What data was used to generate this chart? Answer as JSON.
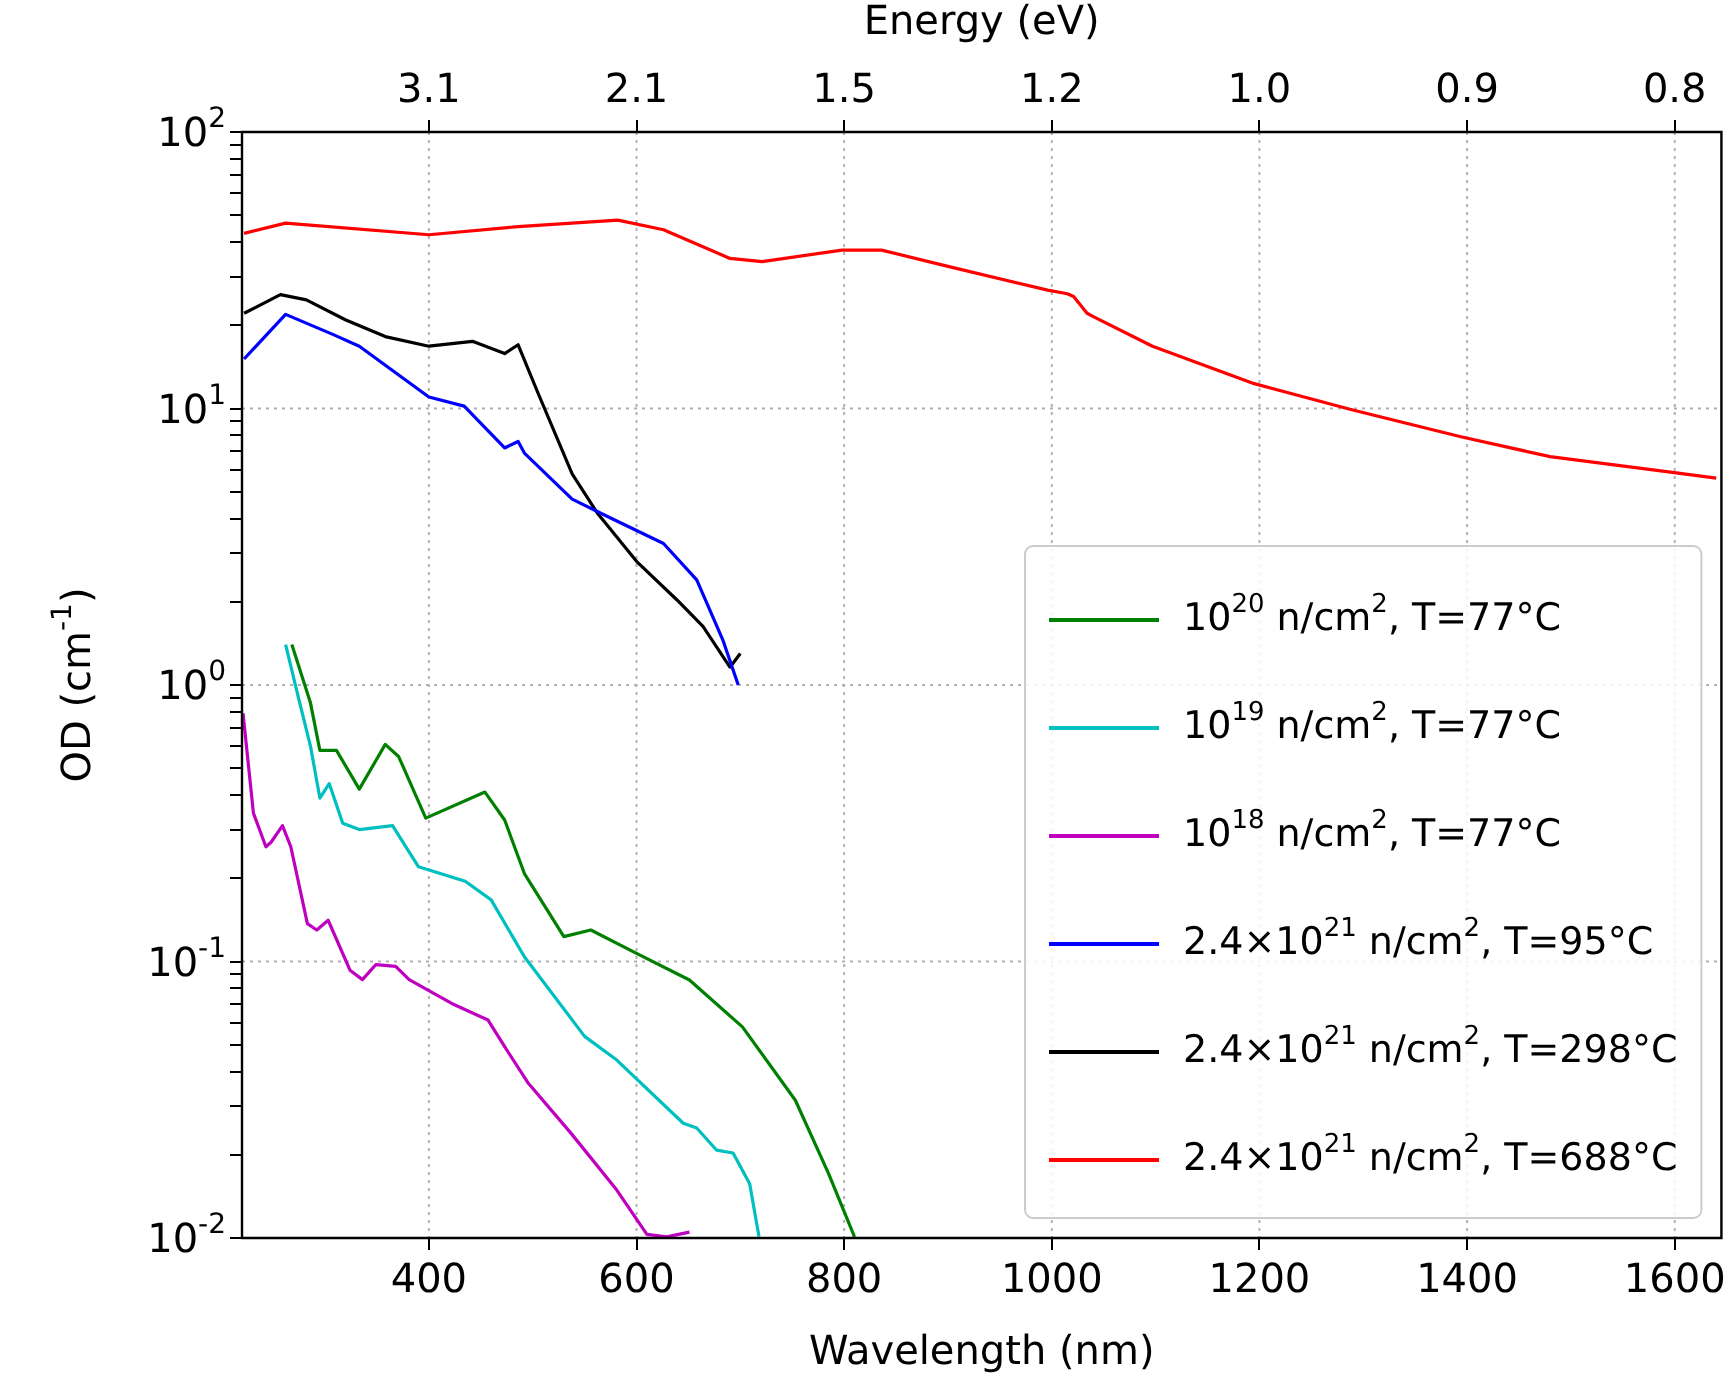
{
  "chart_data": {
    "type": "line",
    "xlabel": "Wavelength (nm)",
    "ylabel": "OD (cm$^{-1}$)",
    "x2label": "Energy (eV)",
    "xlim": [
      220,
      1645
    ],
    "xticks": [
      400,
      600,
      800,
      1000,
      1200,
      1400,
      1600
    ],
    "annotations": [
      "3.1",
      "2.1",
      "1.5",
      "1.2",
      "1.0",
      "0.9",
      "0.8"
    ],
    "log": "y",
    "ylim": [
      0.01,
      100
    ],
    "yticks": [
      {
        "value": 0.01,
        "label": "10$^{-2}$"
      },
      {
        "value": 0.02,
        "label": null
      },
      {
        "value": 0.03,
        "label": null
      },
      {
        "value": 0.04,
        "label": null
      },
      {
        "value": 0.05,
        "label": null
      },
      {
        "value": 0.06,
        "label": null
      },
      {
        "value": 0.07,
        "label": null
      },
      {
        "value": 0.08,
        "label": null
      },
      {
        "value": 0.09,
        "label": null
      },
      {
        "value": 0.1,
        "label": "10$^{-1}$"
      },
      {
        "value": 0.2,
        "label": null
      },
      {
        "value": 0.3,
        "label": null
      },
      {
        "value": 0.4,
        "label": null
      },
      {
        "value": 0.5,
        "label": null
      },
      {
        "value": 0.6,
        "label": null
      },
      {
        "value": 0.7,
        "label": null
      },
      {
        "value": 0.8,
        "label": null
      },
      {
        "value": 0.9,
        "label": null
      },
      {
        "value": 1,
        "label": "10$^{0}$"
      },
      {
        "value": 2,
        "label": null
      },
      {
        "value": 3,
        "label": null
      },
      {
        "value": 4,
        "label": null
      },
      {
        "value": 5,
        "label": null
      },
      {
        "value": 6,
        "label": null
      },
      {
        "value": 7,
        "label": null
      },
      {
        "value": 8,
        "label": null
      },
      {
        "value": 9,
        "label": null
      },
      {
        "value": 10,
        "label": "10$^{1}$"
      },
      {
        "value": 20,
        "label": null
      },
      {
        "value": 30,
        "label": null
      },
      {
        "value": 40,
        "label": null
      },
      {
        "value": 50,
        "label": null
      },
      {
        "value": 60,
        "label": null
      },
      {
        "value": 70,
        "label": null
      },
      {
        "value": 80,
        "label": null
      },
      {
        "value": 90,
        "label": null
      },
      {
        "value": 100,
        "label": "10$^{2}$"
      }
    ],
    "grid": true,
    "legend": "bottom right",
    "marker": "none",
    "line_style": "solid",
    "series": [
      {
        "name": "10$^{20}$ n/cm$^{2}$, T=77°C",
        "color": "#008000",
        "x": [
          268,
          286,
          295,
          311,
          333,
          358,
          371,
          397,
          454,
          473,
          492,
          530,
          556,
          600,
          651,
          702,
          753,
          785,
          810
        ],
        "values": [
          1.4,
          0.86,
          0.58,
          0.58,
          0.42,
          0.61,
          0.55,
          0.33,
          0.41,
          0.325,
          0.208,
          0.123,
          0.13,
          0.107,
          0.0857,
          0.058,
          0.0315,
          0.0171,
          0.0101
        ]
      },
      {
        "name": "10$^{19}$ n/cm$^{2}$, T=77°C",
        "color": "#00bfbf",
        "x": [
          262,
          275,
          286,
          295,
          304,
          317,
          333,
          365,
          390,
          435,
          460,
          492,
          550,
          581,
          645,
          658,
          677,
          693,
          709,
          718
        ],
        "values": [
          1.4,
          0.88,
          0.6,
          0.39,
          0.44,
          0.316,
          0.3,
          0.31,
          0.22,
          0.195,
          0.167,
          0.104,
          0.0536,
          0.044,
          0.026,
          0.025,
          0.0208,
          0.0203,
          0.0157,
          0.0101
        ]
      },
      {
        "name": "10$^{18}$ n/cm$^{2}$, T=77°C",
        "color": "#bf00bf",
        "x": [
          221,
          231,
          243,
          248,
          259,
          267,
          283,
          292,
          303,
          324,
          336,
          349,
          368,
          381,
          422,
          457,
          473,
          496,
          537,
          581,
          610,
          629,
          651
        ],
        "values": [
          0.79,
          0.344,
          0.26,
          0.27,
          0.31,
          0.26,
          0.137,
          0.13,
          0.141,
          0.093,
          0.086,
          0.0975,
          0.096,
          0.086,
          0.0705,
          0.0614,
          0.0492,
          0.0362,
          0.0239,
          0.0149,
          0.0103,
          0.0101,
          0.0105
        ]
      },
      {
        "name": "2.4×10$^{21}$ n/cm$^{2}$, T=95°C",
        "color": "#0000ff",
        "x": [
          222,
          262,
          308,
          333,
          400,
          434,
          473,
          486,
          492,
          538,
          576,
          626,
          658,
          683,
          698
        ],
        "values": [
          15.1,
          21.9,
          18.5,
          16.8,
          11,
          10.2,
          7.2,
          7.6,
          6.9,
          4.7,
          4,
          3.25,
          2.4,
          1.46,
          1.0
        ]
      },
      {
        "name": "2.4×10$^{21}$ n/cm$^{2}$, T=298°C",
        "color": "#000000",
        "x": [
          222,
          257,
          282,
          320,
          358,
          400,
          442,
          473,
          486,
          505,
          538,
          562,
          600,
          639,
          664,
          690,
          700
        ],
        "values": [
          22.1,
          25.8,
          24.7,
          20.9,
          18.2,
          16.8,
          17.5,
          15.8,
          17,
          11.4,
          5.8,
          4.2,
          2.8,
          2.03,
          1.63,
          1.16,
          1.3
        ]
      },
      {
        "name": "2.4×10$^{21}$ n/cm$^{2}$, T=688°C",
        "color": "#ff0000",
        "x": [
          222,
          262,
          400,
          486,
          582,
          626,
          690,
          721,
          798,
          836,
          901,
          996,
          1015,
          1021,
          1034,
          1040,
          1097,
          1195,
          1289,
          1394,
          1480,
          1594,
          1640
        ],
        "values": [
          43,
          46.8,
          42.5,
          45.5,
          48,
          44.3,
          34.9,
          34,
          37.4,
          37.4,
          32.6,
          26.8,
          26,
          25.4,
          22.1,
          21.5,
          16.8,
          12.3,
          9.9,
          7.9,
          6.7,
          5.9,
          5.6
        ]
      }
    ]
  }
}
